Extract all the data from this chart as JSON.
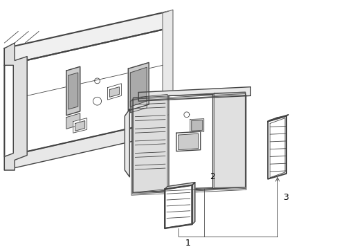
{
  "bg_color": "#ffffff",
  "line_color": "#444444",
  "label_color": "#000000",
  "figsize": [
    4.9,
    3.6
  ],
  "dpi": 100,
  "lw_main": 1.0,
  "lw_thin": 0.6,
  "lw_thick": 1.5
}
